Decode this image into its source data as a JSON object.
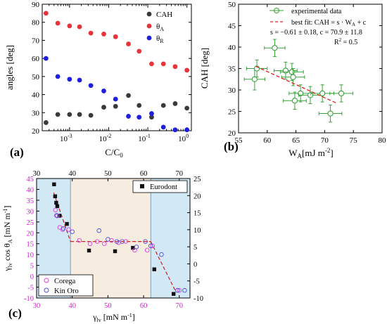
{
  "chart_data": [
    {
      "panel": "(a)",
      "type": "scatter",
      "xlabel": "C/C",
      "xlabel_sub": "0",
      "ylabel": "angles [deg]",
      "x_scale": "log",
      "xlim": [
        0.0002,
        1.3
      ],
      "ylim": [
        20,
        90
      ],
      "xticks": [
        0.001,
        0.01,
        0.1,
        1
      ],
      "xtick_labels": [
        "10",
        "10",
        "10",
        "10"
      ],
      "xtick_exps": [
        "-3",
        "-2",
        "-1",
        "0"
      ],
      "yticks": [
        20,
        30,
        40,
        50,
        60,
        70,
        80,
        90
      ],
      "legend_position": "top-right",
      "x": [
        0.00025,
        0.0005,
        0.001,
        0.0018,
        0.0035,
        0.0075,
        0.015,
        0.032,
        0.06,
        0.125,
        0.25,
        0.5,
        1.0
      ],
      "series": [
        {
          "name": "CAH",
          "color": "#3a3a3a",
          "values": [
            24.5,
            29,
            29,
            29,
            28.5,
            33,
            33.5,
            39.5,
            34,
            27.5,
            34,
            35,
            32.5
          ]
        },
        {
          "name": "θ",
          "name_sub": "A",
          "color": "#e8333a",
          "values": [
            85,
            79.5,
            78,
            77.5,
            74,
            73.5,
            72,
            68,
            64,
            57,
            57,
            55.5,
            53.5
          ]
        },
        {
          "name": "θ",
          "name_sub": "R",
          "color": "#1f1fe0",
          "values": [
            60,
            50,
            48.5,
            48,
            45,
            42,
            37.5,
            28,
            27.5,
            29.5,
            22,
            20.5,
            20.5
          ]
        }
      ]
    },
    {
      "panel": "(b)",
      "type": "scatter",
      "xlabel": "W",
      "xlabel_sub": "A",
      "xlabel_unit": "[mJ m",
      "xlabel_unit_sup": "-2",
      "xlabel_unit_end": "]",
      "ylabel": "CAH [deg]",
      "xlim": [
        55,
        80
      ],
      "ylim": [
        20,
        50
      ],
      "xticks": [
        55,
        60,
        65,
        70,
        75,
        80
      ],
      "yticks": [
        20,
        25,
        30,
        35,
        40,
        45,
        50
      ],
      "legend_position": "top-right",
      "series_color": "#3aa33a",
      "fit_color": "#e02020",
      "legend": {
        "data_label": "experimental data",
        "fit_label": "best fit: CAH = s · W",
        "fit_label_sub": "A",
        "fit_label_end": " + c",
        "params": "s = −0.61 ± 0.18, c = 70.9 ± 11.8",
        "r2": "R",
        "r2_sup": "2",
        "r2_end": " = 0.5"
      },
      "points": [
        {
          "x": 57.8,
          "y": 32.5,
          "xerr": 1.8,
          "yerr": 2.5
        },
        {
          "x": 58.2,
          "y": 35.0,
          "xerr": 1.8,
          "yerr": 2.0
        },
        {
          "x": 61.3,
          "y": 39.8,
          "xerr": 1.8,
          "yerr": 2.0
        },
        {
          "x": 63.2,
          "y": 34.5,
          "xerr": 2.0,
          "yerr": 2.0
        },
        {
          "x": 64.3,
          "y": 34.2,
          "xerr": 2.0,
          "yerr": 2.0
        },
        {
          "x": 64.5,
          "y": 33.0,
          "xerr": 2.0,
          "yerr": 2.0
        },
        {
          "x": 64.8,
          "y": 27.5,
          "xerr": 2.0,
          "yerr": 2.0
        },
        {
          "x": 65.8,
          "y": 29.2,
          "xerr": 2.0,
          "yerr": 2.0
        },
        {
          "x": 67.5,
          "y": 28.8,
          "xerr": 2.0,
          "yerr": 2.0
        },
        {
          "x": 69.6,
          "y": 29.2,
          "xerr": 2.0,
          "yerr": 2.0
        },
        {
          "x": 71.0,
          "y": 24.5,
          "xerr": 2.0,
          "yerr": 2.0
        },
        {
          "x": 72.9,
          "y": 29.2,
          "xerr": 2.0,
          "yerr": 2.0
        }
      ],
      "fit": {
        "slope": -0.61,
        "intercept": 70.9,
        "x_range": [
          58,
          72
        ]
      }
    },
    {
      "panel": "(c)",
      "type": "scatter",
      "xlabel": "γ",
      "xlabel_sub": "lv",
      "xlabel_unit": " [mN m",
      "xlabel_unit_sup": "-1",
      "xlabel_unit_end": "]",
      "ylabel": "γ",
      "ylabel_sub": "lv",
      "ylabel_mid": " cos θ",
      "ylabel_sub2": "A",
      "ylabel_unit": " [mN m",
      "ylabel_unit_sup": "-1",
      "ylabel_unit_end": "]",
      "xlim": [
        30,
        73
      ],
      "ylim": [
        -10,
        45
      ],
      "xticks": [
        30,
        40,
        50,
        60,
        70
      ],
      "yticks": [
        -10,
        -5,
        0,
        5,
        10,
        15,
        20,
        25,
        30,
        35,
        40,
        45
      ],
      "top_xlim": [
        30,
        73
      ],
      "top_xticks": [
        30,
        40,
        50,
        60,
        70
      ],
      "right_ylim": [
        -10,
        25
      ],
      "right_yticks": [
        -10,
        -5,
        0,
        5,
        10,
        15,
        20,
        25
      ],
      "regions": [
        {
          "x": [
            30,
            39.5
          ],
          "color": "#d2e8f4"
        },
        {
          "x": [
            39.5,
            62
          ],
          "color": "#f6ece0"
        },
        {
          "x": [
            62,
            73
          ],
          "color": "#d2e8f4"
        }
      ],
      "fit_color": "#d02020",
      "fit_segments": [
        [
          [
            34.8,
            38.5
          ],
          [
            39.5,
            16
          ]
        ],
        [
          [
            39.5,
            16
          ],
          [
            62,
            16
          ]
        ],
        [
          [
            62,
            16
          ],
          [
            69,
            -7
          ]
        ]
      ],
      "series": [
        {
          "name": "Eurodont",
          "marker": "filled-square",
          "color": "#111111",
          "legend_position": "top-right",
          "axis": "right",
          "points": [
            [
              34.9,
              23.3
            ],
            [
              35.2,
              19.8
            ],
            [
              35.5,
              17.9
            ],
            [
              35.8,
              16.9
            ],
            [
              36.4,
              14.1
            ],
            [
              38.5,
              11.7
            ],
            [
              44.7,
              3.9
            ],
            [
              52.0,
              3.7
            ],
            [
              57.0,
              4.7
            ],
            [
              63.0,
              -1.6
            ],
            [
              68.4,
              -8.8
            ]
          ]
        },
        {
          "name": "Corega",
          "marker": "open-circle",
          "color": "#e040e0",
          "legend_position": "bottom-left",
          "axis": "left",
          "points": [
            [
              35.3,
              30.5
            ],
            [
              35.8,
              27.8
            ],
            [
              36.5,
              22.5
            ],
            [
              37.3,
              21.5
            ],
            [
              39.0,
              21.5
            ],
            [
              42.0,
              16.5
            ],
            [
              45.0,
              15.0
            ],
            [
              47.0,
              16.0
            ],
            [
              49.0,
              15.0
            ],
            [
              51.0,
              16.5
            ],
            [
              53.0,
              15.5
            ],
            [
              55.0,
              16.0
            ],
            [
              57.5,
              12.0
            ],
            [
              61.0,
              12.0
            ],
            [
              62.5,
              14.0
            ],
            [
              70.0,
              -6.5
            ]
          ]
        },
        {
          "name": "Kin Oro",
          "marker": "open-circle",
          "color": "#5050d8",
          "legend_position": "bottom-left",
          "axis": "left",
          "points": [
            [
              35.6,
              28.0
            ],
            [
              37.5,
              22.0
            ],
            [
              40.0,
              20.5
            ],
            [
              47.5,
              21.0
            ],
            [
              50.0,
              17.0
            ],
            [
              52.5,
              16.0
            ],
            [
              54.0,
              16.0
            ],
            [
              58.0,
              13.5
            ],
            [
              60.5,
              16.0
            ],
            [
              62.0,
              14.0
            ],
            [
              65.0,
              10.0
            ],
            [
              69.5,
              -6.5
            ],
            [
              71.5,
              -6.5
            ]
          ]
        }
      ]
    }
  ]
}
